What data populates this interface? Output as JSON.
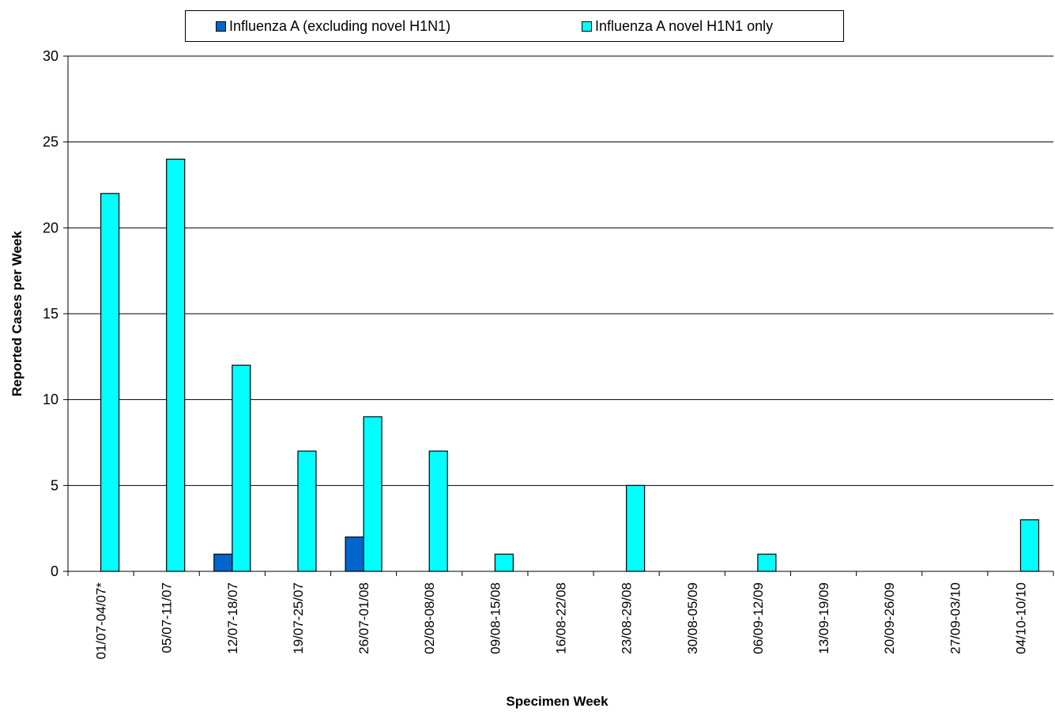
{
  "chart_data": {
    "type": "bar",
    "title": "",
    "xlabel": "Specimen Week",
    "ylabel": "Reported Cases per Week",
    "ylim": [
      0,
      30
    ],
    "yticks": [
      0,
      5,
      10,
      15,
      20,
      25,
      30
    ],
    "grid": true,
    "legend_position": "top",
    "categories": [
      "01/07-04/07*",
      "05/07-11/07",
      "12/07-18/07",
      "19/07-25/07",
      "26/07-01/08",
      "02/08-08/08",
      "09/08-15/08",
      "16/08-22/08",
      "23/08-29/08",
      "30/08-05/09",
      "06/09-12/09",
      "13/09-19/09",
      "20/09-26/09",
      "27/09-03/10",
      "04/10-10/10"
    ],
    "series": [
      {
        "name": "Influenza A (excluding novel H1N1)",
        "color": "#0066cc",
        "values": [
          0,
          0,
          1,
          0,
          2,
          0,
          0,
          0,
          0,
          0,
          0,
          0,
          0,
          0,
          0
        ]
      },
      {
        "name": "Influenza A novel H1N1 only",
        "color": "#00ffff",
        "values": [
          22,
          24,
          12,
          7,
          9,
          7,
          1,
          0,
          5,
          0,
          1,
          0,
          0,
          0,
          3
        ]
      }
    ]
  }
}
